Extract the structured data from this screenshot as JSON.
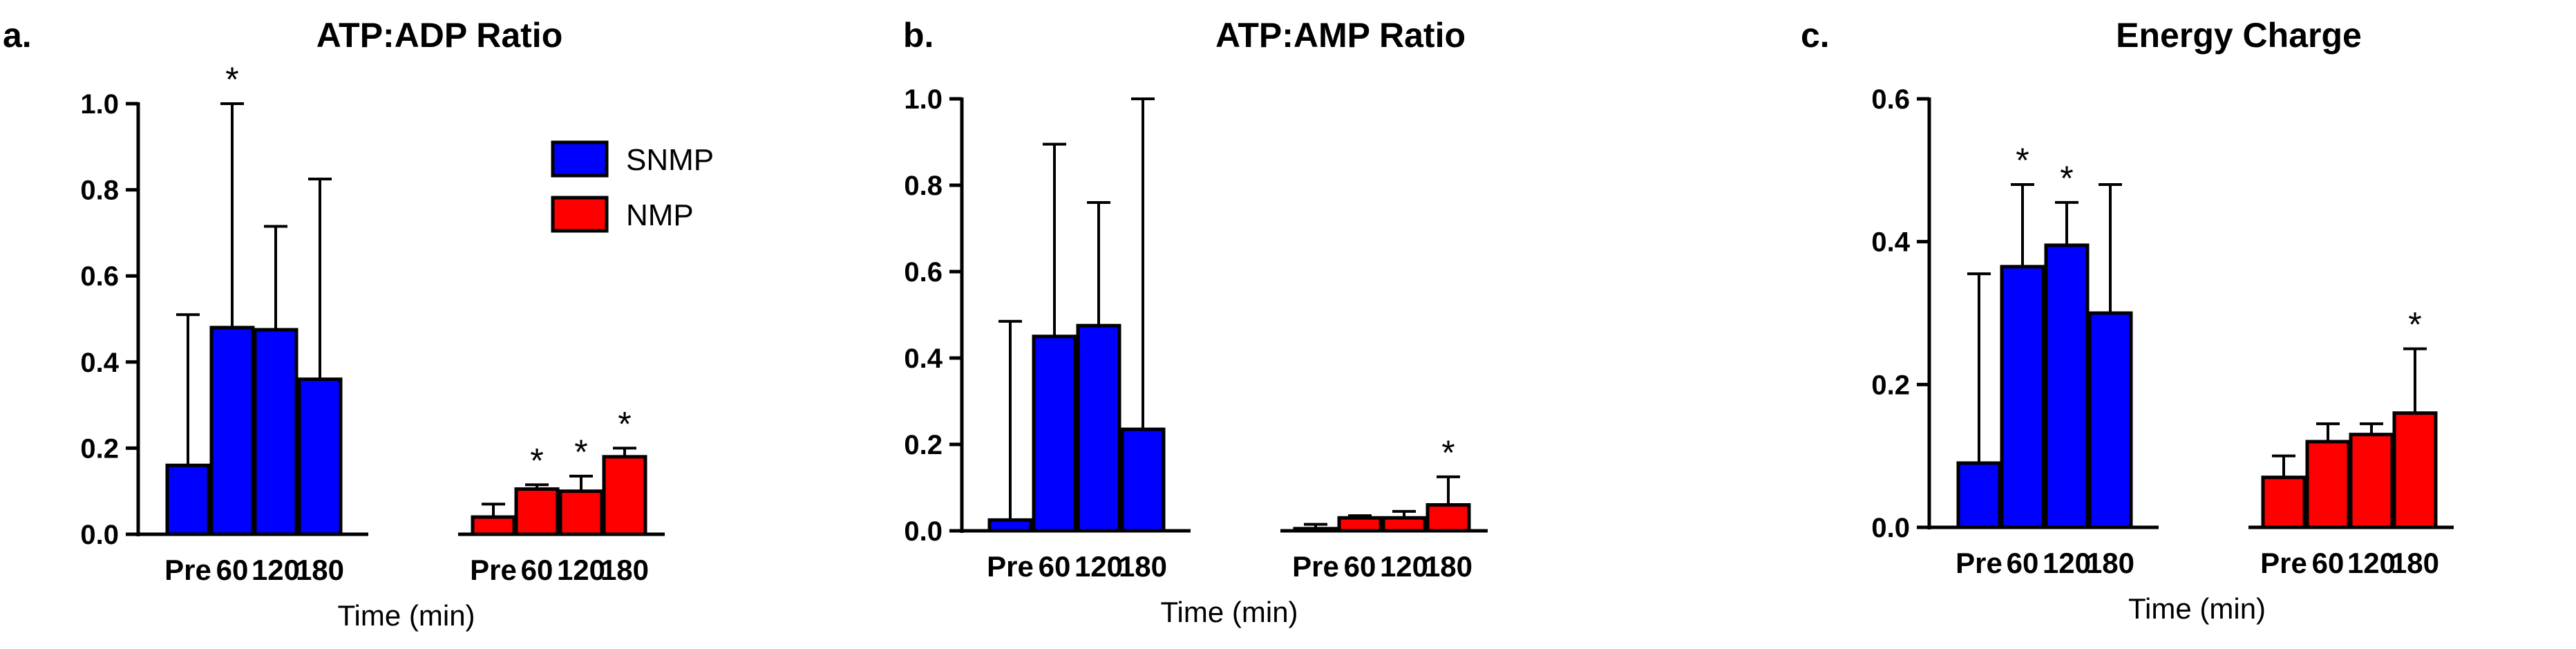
{
  "chart_data": [
    {
      "type": "bar",
      "panel": "a.",
      "title": "ATP:ADP Ratio",
      "xlabel": "Time (min)",
      "ylabel": "",
      "ylim": [
        0,
        1.0
      ],
      "yticks": [
        "0.0",
        "0.2",
        "0.4",
        "0.6",
        "0.8",
        "1.0"
      ],
      "categories": [
        "Pre",
        "60",
        "120",
        "180"
      ],
      "series": [
        {
          "name": "SNMP",
          "color": "#0000ff",
          "values": [
            0.16,
            0.48,
            0.475,
            0.36
          ],
          "errors": [
            0.35,
            0.52,
            0.24,
            0.465
          ],
          "significant": [
            false,
            true,
            false,
            false
          ]
        },
        {
          "name": "NMP",
          "color": "#ff0000",
          "values": [
            0.04,
            0.105,
            0.1,
            0.18
          ],
          "errors": [
            0.03,
            0.01,
            0.035,
            0.02
          ],
          "significant": [
            false,
            true,
            true,
            true
          ]
        }
      ],
      "legend": {
        "position": "top-right",
        "entries": [
          "SNMP",
          "NMP"
        ]
      },
      "significance_marker": "*"
    },
    {
      "type": "bar",
      "panel": "b.",
      "title": "ATP:AMP Ratio",
      "xlabel": "Time (min)",
      "ylabel": "",
      "ylim": [
        0,
        1.0
      ],
      "yticks": [
        "0.0",
        "0.2",
        "0.4",
        "0.6",
        "0.8",
        "1.0"
      ],
      "categories": [
        "Pre",
        "60",
        "120",
        "180"
      ],
      "series": [
        {
          "name": "SNMP",
          "color": "#0000ff",
          "values": [
            0.025,
            0.45,
            0.475,
            0.235
          ],
          "errors": [
            0.46,
            0.445,
            0.285,
            0.765
          ],
          "significant": [
            false,
            false,
            false,
            false
          ]
        },
        {
          "name": "NMP",
          "color": "#ff0000",
          "values": [
            0.005,
            0.03,
            0.03,
            0.06
          ],
          "errors": [
            0.01,
            0.005,
            0.015,
            0.065
          ],
          "significant": [
            false,
            false,
            false,
            true
          ]
        }
      ],
      "significance_marker": "*"
    },
    {
      "type": "bar",
      "panel": "c.",
      "title": "Energy Charge",
      "xlabel": "Time (min)",
      "ylabel": "",
      "ylim": [
        0,
        0.6
      ],
      "yticks": [
        "0.0",
        "0.2",
        "0.4",
        "0.6"
      ],
      "categories": [
        "Pre",
        "60",
        "120",
        "180"
      ],
      "series": [
        {
          "name": "SNMP",
          "color": "#0000ff",
          "values": [
            0.09,
            0.365,
            0.395,
            0.3
          ],
          "errors": [
            0.265,
            0.115,
            0.06,
            0.18
          ],
          "significant": [
            false,
            true,
            true,
            false
          ]
        },
        {
          "name": "NMP",
          "color": "#ff0000",
          "values": [
            0.07,
            0.12,
            0.13,
            0.16
          ],
          "errors": [
            0.03,
            0.025,
            0.015,
            0.09
          ],
          "significant": [
            false,
            false,
            false,
            true
          ]
        }
      ],
      "significance_marker": "*"
    }
  ]
}
